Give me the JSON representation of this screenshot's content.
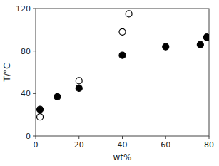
{
  "chart_data": {
    "type": "scatter",
    "xlabel": "wt%",
    "ylabel": "T/°C",
    "xlim": [
      0,
      80
    ],
    "ylim": [
      0,
      120
    ],
    "xticks": [
      0,
      20,
      40,
      60,
      80
    ],
    "yticks": [
      0,
      40,
      80,
      120
    ],
    "grid": false,
    "series": [
      {
        "color": "#000000",
        "marker": "circle-open",
        "x": [
          2,
          20,
          40,
          43,
          79
        ],
        "values": [
          18,
          52,
          98,
          115,
          93
        ]
      },
      {
        "color": "#000000",
        "marker": "circle",
        "x": [
          2,
          10,
          20,
          40,
          60,
          76,
          79
        ],
        "values": [
          25,
          37,
          45,
          76,
          84,
          86,
          93
        ]
      }
    ]
  }
}
